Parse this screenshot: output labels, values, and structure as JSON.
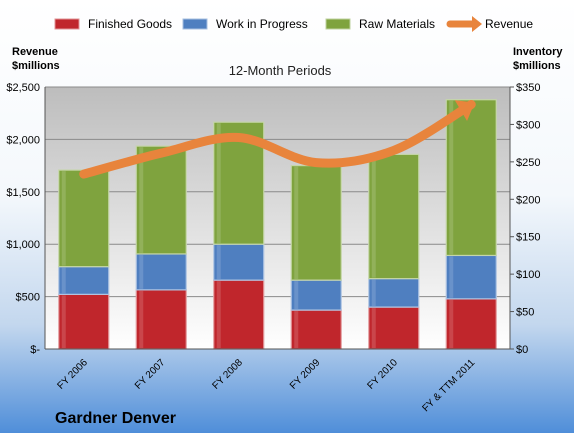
{
  "company": "Gardner Denver",
  "chart_data": {
    "type": "bar",
    "stacked": true,
    "title": "12-Month Periods",
    "categories": [
      "FY 2006",
      "FY 2007",
      "FY 2008",
      "FY 2009",
      "FY 2010",
      "FY & TTM 2011"
    ],
    "series": [
      {
        "name": "Finished Goods",
        "axis": "right",
        "color": "#c0262c",
        "values": [
          73,
          79,
          92,
          52,
          56,
          67
        ]
      },
      {
        "name": "Work in Progress",
        "axis": "right",
        "color": "#4f7fc0",
        "values": [
          37,
          48,
          48,
          40,
          38,
          58
        ]
      },
      {
        "name": "Raw Materials",
        "axis": "right",
        "color": "#7fa33e",
        "values": [
          129,
          144,
          163,
          153,
          166,
          208
        ]
      },
      {
        "name": "Revenue",
        "type": "line",
        "axis": "left",
        "color": "#e8843c",
        "values": [
          1669,
          1869,
          2018,
          1778,
          1895,
          2333
        ]
      }
    ],
    "left_axis": {
      "label": "Revenue\n$millions",
      "min": 0,
      "max": 2500,
      "ticks": [
        "$-",
        "$500",
        "$1,000",
        "$1,500",
        "$2,000",
        "$2,500"
      ]
    },
    "right_axis": {
      "label": "Inventory\n$millions",
      "min": 0,
      "max": 350,
      "ticks": [
        "$0",
        "$50",
        "$100",
        "$150",
        "$200",
        "$250",
        "$300",
        "$350"
      ]
    },
    "grid": true,
    "legend": "top"
  }
}
